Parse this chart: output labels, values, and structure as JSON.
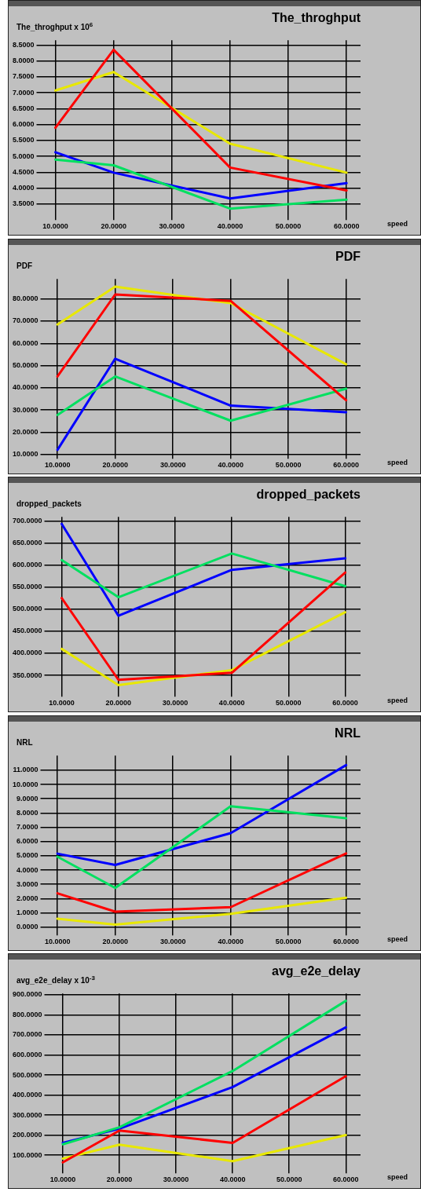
{
  "chart_data": [
    {
      "type": "line",
      "title": "The_throghput",
      "ylabel": "The_throghput x 10$^{6}$",
      "xlabel": "speed",
      "x": [
        10,
        20,
        40,
        60
      ],
      "xlim": [
        7.3,
        62.4
      ],
      "xticks": [
        {
          "value": 10,
          "label": "10.0000"
        },
        {
          "value": 20,
          "label": "20.0000"
        },
        {
          "value": 30,
          "label": "30.0000"
        },
        {
          "value": 40,
          "label": "40.0000"
        },
        {
          "value": 50,
          "label": "50.0000"
        },
        {
          "value": 60,
          "label": "60.0000"
        }
      ],
      "ylim": [
        3.1,
        8.65
      ],
      "yticks": [
        {
          "value": 3.5,
          "label": "3.5000"
        },
        {
          "value": 4,
          "label": "4.0000"
        },
        {
          "value": 4.5,
          "label": "4.5000"
        },
        {
          "value": 5,
          "label": "5.0000"
        },
        {
          "value": 5.5,
          "label": "5.5000"
        },
        {
          "value": 6,
          "label": "6.0000"
        },
        {
          "value": 6.5,
          "label": "6.5000"
        },
        {
          "value": 7,
          "label": "7.0000"
        },
        {
          "value": 7.5,
          "label": "7.5000"
        },
        {
          "value": 8,
          "label": "8.0000"
        },
        {
          "value": 8.5,
          "label": "8.5000"
        }
      ],
      "series": [
        {
          "color": "#ff0000",
          "values": [
            5.9,
            8.35,
            4.65,
            3.93
          ]
        },
        {
          "color": "#00e060",
          "values": [
            4.9,
            4.72,
            3.36,
            3.64
          ]
        },
        {
          "color": "#0000ff",
          "values": [
            5.13,
            4.49,
            3.68,
            4.16
          ]
        },
        {
          "color": "#e8e800",
          "values": [
            7.07,
            7.65,
            5.4,
            4.49
          ]
        }
      ],
      "grid": true,
      "marker": "none"
    },
    {
      "type": "line",
      "title": "PDF",
      "ylabel": "PDF",
      "xlabel": "speed",
      "x": [
        10,
        20,
        40,
        60
      ],
      "xlim": [
        7.6,
        62.5
      ],
      "xticks": [
        {
          "value": 10,
          "label": "10.0000"
        },
        {
          "value": 20,
          "label": "20.0000"
        },
        {
          "value": 30,
          "label": "30.0000"
        },
        {
          "value": 40,
          "label": "40.0000"
        },
        {
          "value": 50,
          "label": "50.0000"
        },
        {
          "value": 60,
          "label": "60.0000"
        }
      ],
      "ylim": [
        9.5,
        89
      ],
      "yticks": [
        {
          "value": 10,
          "label": "10.0000"
        },
        {
          "value": 20,
          "label": "20.0000"
        },
        {
          "value": 30,
          "label": "30.0000"
        },
        {
          "value": 40,
          "label": "40.0000"
        },
        {
          "value": 50,
          "label": "50.0000"
        },
        {
          "value": 60,
          "label": "60.0000"
        },
        {
          "value": 70,
          "label": "70.0000"
        },
        {
          "value": 80,
          "label": "80.0000"
        }
      ],
      "series": [
        {
          "color": "#ff0000",
          "values": [
            45.1,
            82,
            79.1,
            34.4
          ]
        },
        {
          "color": "#00e060",
          "values": [
            27.8,
            45.1,
            25.2,
            39.6
          ]
        },
        {
          "color": "#0000ff",
          "values": [
            12.1,
            53.1,
            32,
            29
          ]
        },
        {
          "color": "#e8e800",
          "values": [
            68.5,
            85.5,
            78.1,
            50.6
          ]
        }
      ],
      "grid": true,
      "marker": "none"
    },
    {
      "type": "line",
      "title": "dropped_packets",
      "ylabel": "dropped_packets",
      "xlabel": "speed",
      "x": [
        10,
        20,
        40,
        60
      ],
      "xlim": [
        7.5,
        62.7
      ],
      "xticks": [
        {
          "value": 10,
          "label": "10.0000"
        },
        {
          "value": 20,
          "label": "20.0000"
        },
        {
          "value": 30,
          "label": "30.0000"
        },
        {
          "value": 40,
          "label": "40.0000"
        },
        {
          "value": 50,
          "label": "50.0000"
        },
        {
          "value": 60,
          "label": "60.0000"
        }
      ],
      "ylim": [
        309,
        709
      ],
      "yticks": [
        {
          "value": 350,
          "label": "350.0000"
        },
        {
          "value": 400,
          "label": "400.0000"
        },
        {
          "value": 450,
          "label": "450.0000"
        },
        {
          "value": 500,
          "label": "500.0000"
        },
        {
          "value": 550,
          "label": "550.0000"
        },
        {
          "value": 600,
          "label": "600.0000"
        },
        {
          "value": 650,
          "label": "650.0000"
        },
        {
          "value": 700,
          "label": "700.0000"
        }
      ],
      "series": [
        {
          "color": "#ff0000",
          "values": [
            525,
            340,
            356,
            583
          ]
        },
        {
          "color": "#00e060",
          "values": [
            611,
            527,
            626,
            552
          ]
        },
        {
          "color": "#0000ff",
          "values": [
            693,
            485,
            589,
            615
          ]
        },
        {
          "color": "#e8e800",
          "values": [
            410,
            328,
            362,
            493
          ]
        }
      ],
      "grid": true,
      "marker": "none"
    },
    {
      "type": "line",
      "title": "NRL",
      "ylabel": "NRL",
      "xlabel": "speed",
      "x": [
        10,
        20,
        40,
        60
      ],
      "xlim": [
        7.6,
        62.5
      ],
      "xticks": [
        {
          "value": 10,
          "label": "10.0000"
        },
        {
          "value": 20,
          "label": "20.0000"
        },
        {
          "value": 30,
          "label": "30.0000"
        },
        {
          "value": 40,
          "label": "40.0000"
        },
        {
          "value": 50,
          "label": "50.0000"
        },
        {
          "value": 60,
          "label": "60.0000"
        }
      ],
      "ylim": [
        -0.36,
        12.03
      ],
      "yticks": [
        {
          "value": 0,
          "label": "0.0000"
        },
        {
          "value": 1,
          "label": "1.0000"
        },
        {
          "value": 2,
          "label": "2.0000"
        },
        {
          "value": 3,
          "label": "3.0000"
        },
        {
          "value": 4,
          "label": "4.0000"
        },
        {
          "value": 5,
          "label": "5.0000"
        },
        {
          "value": 6,
          "label": "6.0000"
        },
        {
          "value": 7,
          "label": "7.0000"
        },
        {
          "value": 8,
          "label": "8.0000"
        },
        {
          "value": 9,
          "label": "9.0000"
        },
        {
          "value": 10,
          "label": "10.0000"
        },
        {
          "value": 11,
          "label": "11.0000"
        }
      ],
      "series": [
        {
          "color": "#ff0000",
          "values": [
            2.37,
            1.08,
            1.4,
            5.17
          ]
        },
        {
          "color": "#00e060",
          "values": [
            4.94,
            2.75,
            8.47,
            7.63
          ]
        },
        {
          "color": "#0000ff",
          "values": [
            5.15,
            4.36,
            6.59,
            11.36
          ]
        },
        {
          "color": "#e8e800",
          "values": [
            0.59,
            0.18,
            0.93,
            2.06
          ]
        }
      ],
      "grid": true,
      "marker": "none"
    },
    {
      "type": "line",
      "title": "avg_e2e_delay",
      "ylabel": "avg_e2e_delay x 10$^{-3}$",
      "xlabel": "speed",
      "x": [
        10,
        20,
        40,
        60
      ],
      "xlim": [
        7.3,
        62.6
      ],
      "xticks": [
        {
          "value": 10,
          "label": "10.0000"
        },
        {
          "value": 20,
          "label": "20.0000"
        },
        {
          "value": 30,
          "label": "30.0000"
        },
        {
          "value": 40,
          "label": "40.0000"
        },
        {
          "value": 50,
          "label": "50.0000"
        },
        {
          "value": 60,
          "label": "60.0000"
        }
      ],
      "ylim": [
        25,
        907
      ],
      "yticks": [
        {
          "value": 100,
          "label": "100.0000"
        },
        {
          "value": 200,
          "label": "200.0000"
        },
        {
          "value": 300,
          "label": "300.0000"
        },
        {
          "value": 400,
          "label": "400.0000"
        },
        {
          "value": 500,
          "label": "500.0000"
        },
        {
          "value": 600,
          "label": "600.0000"
        },
        {
          "value": 700,
          "label": "700.0000"
        },
        {
          "value": 800,
          "label": "800.0000"
        },
        {
          "value": 900,
          "label": "900.0000"
        }
      ],
      "series": [
        {
          "color": "#ff0000",
          "values": [
            64,
            223,
            161,
            494
          ]
        },
        {
          "color": "#00e060",
          "values": [
            154,
            239,
            520,
            870
          ]
        },
        {
          "color": "#0000ff",
          "values": [
            161,
            232,
            440,
            738
          ]
        },
        {
          "color": "#e8e800",
          "values": [
            83,
            152,
            70,
            200
          ]
        }
      ],
      "grid": true,
      "marker": "none"
    }
  ]
}
